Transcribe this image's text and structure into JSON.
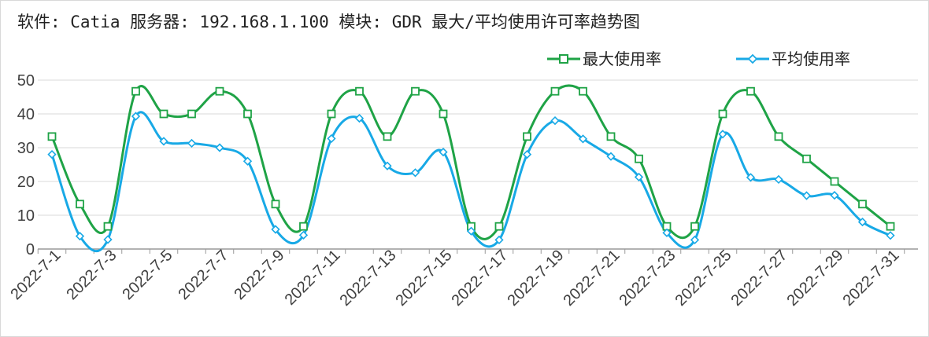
{
  "chart_data": {
    "type": "line",
    "title": "软件: Catia 服务器: 192.168.1.100 模块: GDR  最大/平均使用许可率趋势图",
    "xlabel": "",
    "ylabel": "",
    "ylim": [
      0,
      50
    ],
    "yticks": [
      0,
      10,
      20,
      30,
      40,
      50
    ],
    "grid": "horizontal",
    "legend_position": "top-right",
    "x": [
      "2022-7-1",
      "2022-7-2",
      "2022-7-3",
      "2022-7-4",
      "2022-7-5",
      "2022-7-6",
      "2022-7-7",
      "2022-7-8",
      "2022-7-9",
      "2022-7-10",
      "2022-7-11",
      "2022-7-12",
      "2022-7-13",
      "2022-7-14",
      "2022-7-15",
      "2022-7-16",
      "2022-7-17",
      "2022-7-18",
      "2022-7-19",
      "2022-7-20",
      "2022-7-21",
      "2022-7-22",
      "2022-7-23",
      "2022-7-24",
      "2022-7-25",
      "2022-7-26",
      "2022-7-27",
      "2022-7-28",
      "2022-7-29",
      "2022-7-30",
      "2022-7-31"
    ],
    "xtick_labels": [
      "2022-7-1",
      "2022-7-3",
      "2022-7-5",
      "2022-7-7",
      "2022-7-9",
      "2022-7-11",
      "2022-7-13",
      "2022-7-15",
      "2022-7-17",
      "2022-7-19",
      "2022-7-21",
      "2022-7-23",
      "2022-7-25",
      "2022-7-27",
      "2022-7-29",
      "2022-7-31"
    ],
    "series": [
      {
        "name": "最大使用率",
        "color": "#1fa346",
        "marker": "square",
        "values": [
          33.3,
          13.3,
          6.7,
          46.7,
          40,
          40,
          46.7,
          40,
          13.3,
          6.7,
          40,
          46.7,
          33.3,
          46.7,
          40,
          6.7,
          6.7,
          33.3,
          46.7,
          46.7,
          33.3,
          26.7,
          6.7,
          6.7,
          40,
          46.7,
          33.3,
          26.7,
          20,
          13.3,
          6.7
        ]
      },
      {
        "name": "平均使用率",
        "color": "#18a9e6",
        "marker": "diamond",
        "values": [
          28,
          3.8,
          2.8,
          39.3,
          31.9,
          31.3,
          30,
          26,
          5.8,
          4.1,
          32.7,
          38.7,
          24.6,
          22.6,
          28.7,
          5.3,
          2.7,
          28,
          38,
          32.6,
          27.4,
          21.3,
          4.8,
          2.7,
          34,
          21.2,
          20.6,
          15.8,
          15.9,
          8,
          4
        ]
      }
    ]
  }
}
